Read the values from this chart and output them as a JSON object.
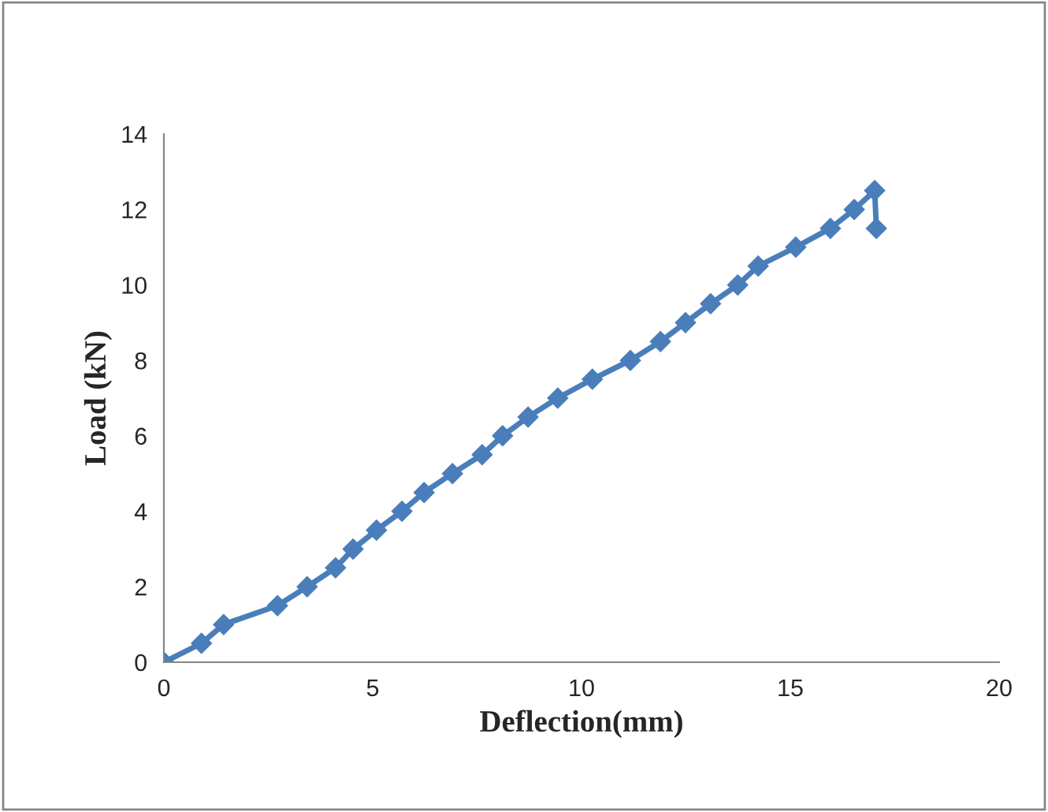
{
  "chart_data": {
    "type": "line",
    "xlabel": "Deflection(mm)",
    "ylabel": "Load (kN)",
    "marker": "diamond",
    "line_style": "solid",
    "grid": false,
    "legend": false,
    "xlim": [
      0,
      20
    ],
    "xticks": [
      0,
      5,
      10,
      15,
      20
    ],
    "ylim": [
      0,
      14
    ],
    "yticks": [
      0,
      2,
      4,
      6,
      8,
      10,
      12,
      14
    ],
    "series": [
      {
        "color": "#4a7ebb",
        "x": [
          0,
          0.9,
          1.43,
          2.72,
          3.43,
          4.11,
          4.53,
          5.09,
          5.7,
          6.23,
          6.91,
          7.62,
          8.11,
          8.72,
          9.43,
          10.26,
          11.17,
          11.89,
          12.49,
          13.09,
          13.74,
          14.23,
          15.13,
          15.96,
          16.53,
          17.02,
          17.06
        ],
        "values": [
          0,
          0.5,
          1,
          1.5,
          2,
          2.5,
          3,
          3.5,
          4,
          4.5,
          5,
          5.5,
          6,
          6.5,
          7,
          7.5,
          8,
          8.5,
          9,
          9.5,
          10,
          10.5,
          11,
          11.5,
          12,
          12.5,
          11.5
        ]
      }
    ]
  }
}
